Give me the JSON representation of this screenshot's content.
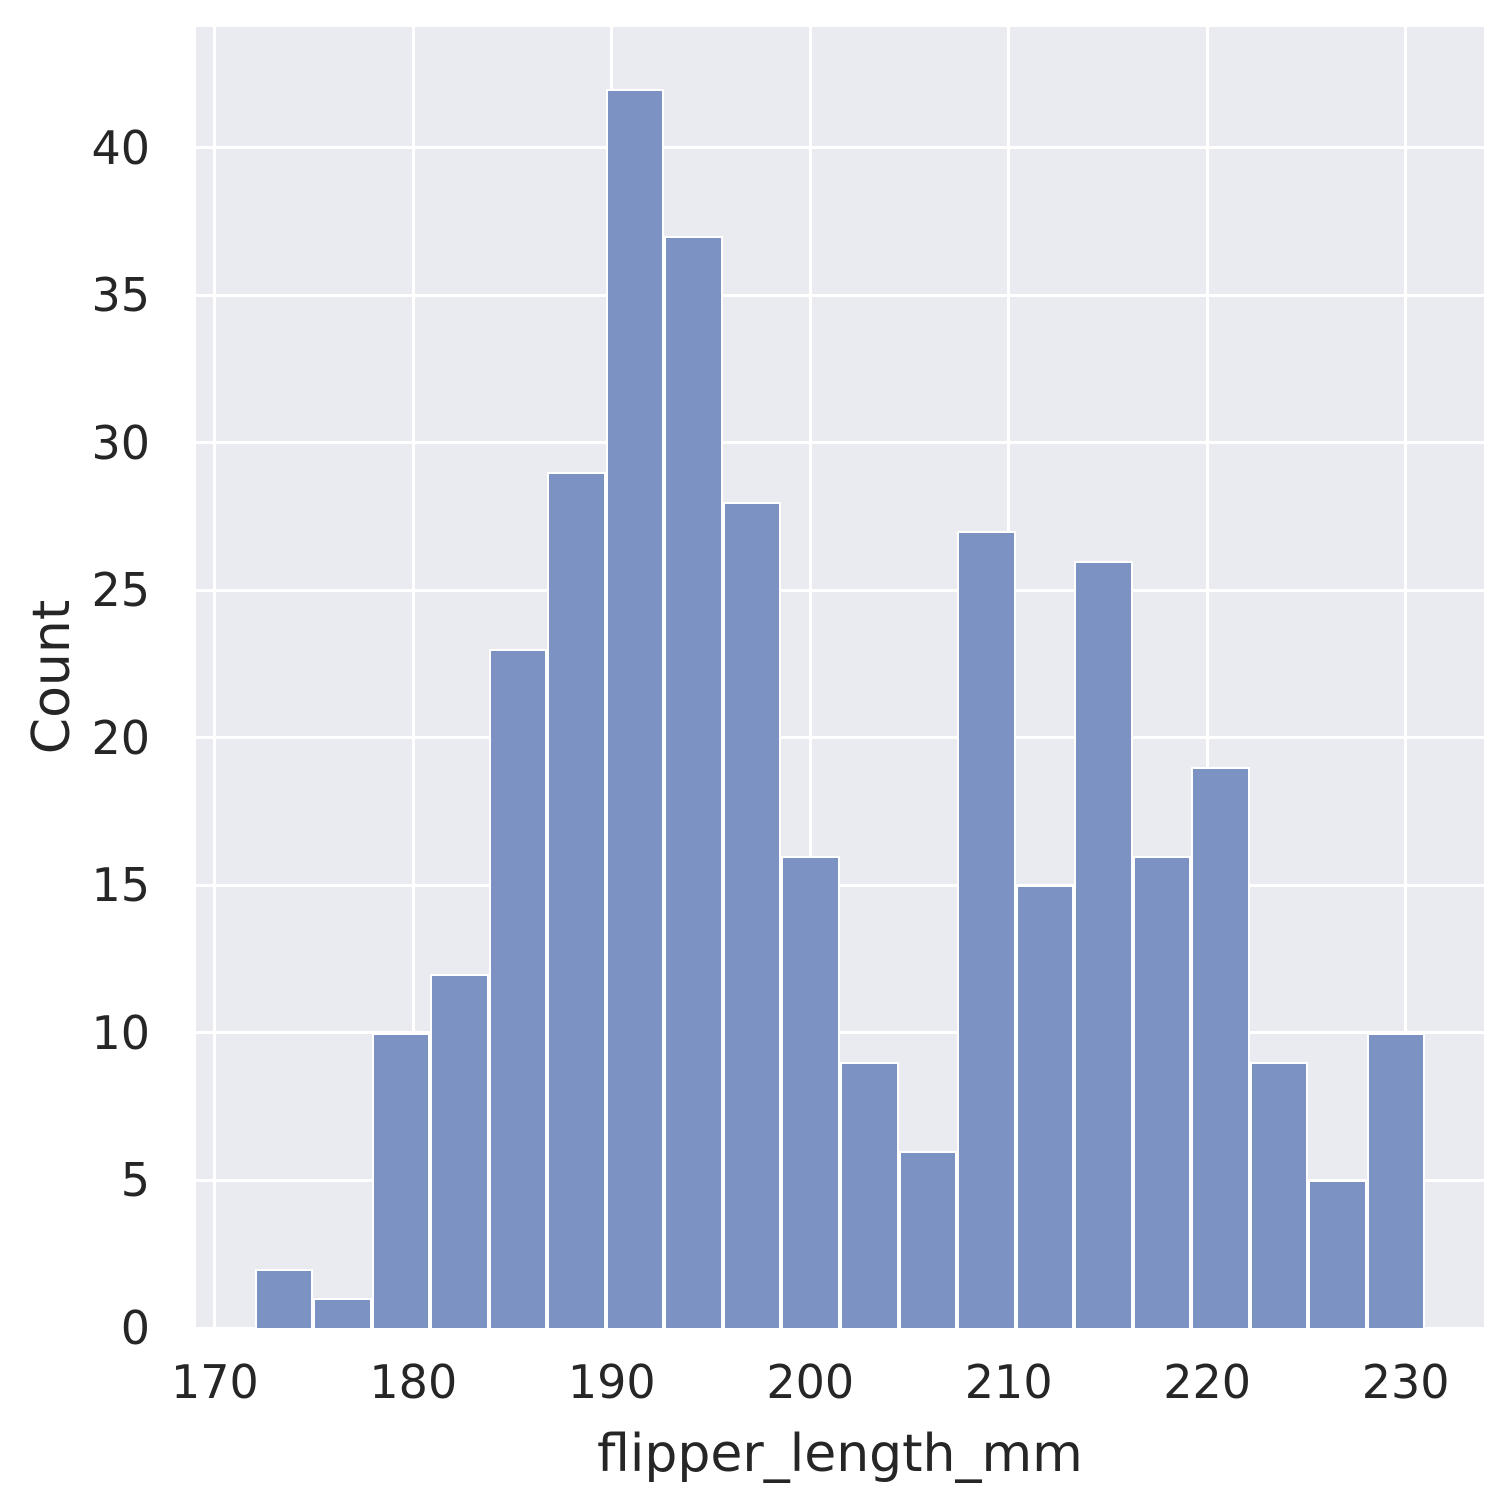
{
  "chart_data": {
    "type": "bar",
    "subtype": "histogram",
    "title": "",
    "xlabel": "flipper_length_mm",
    "ylabel": "Count",
    "bin_edges": [
      172,
      174.95,
      177.9,
      180.85,
      183.8,
      186.75,
      189.7,
      192.65,
      195.6,
      198.55,
      201.5,
      204.45,
      207.4,
      210.35,
      213.3,
      216.25,
      219.2,
      222.15,
      225.1,
      228.05,
      231
    ],
    "counts": [
      2,
      1,
      10,
      12,
      23,
      29,
      42,
      37,
      28,
      16,
      9,
      6,
      27,
      15,
      26,
      16,
      19,
      9,
      5,
      10
    ],
    "total_count": 342,
    "x_ticks": [
      170,
      180,
      190,
      200,
      210,
      220,
      230
    ],
    "y_ticks": [
      0,
      5,
      10,
      15,
      20,
      25,
      30,
      35,
      40
    ],
    "xlim": [
      169.05,
      233.95
    ],
    "ylim": [
      0,
      44.1
    ],
    "grid": true,
    "legend": false,
    "colors": {
      "bar_fill": "#7C92C2",
      "bar_edge": "#FFFFFF",
      "plot_background": "#EAEAF1",
      "gridline": "#FFFFFF",
      "text": "#262626",
      "figure_background": "#FFFFFF"
    }
  }
}
